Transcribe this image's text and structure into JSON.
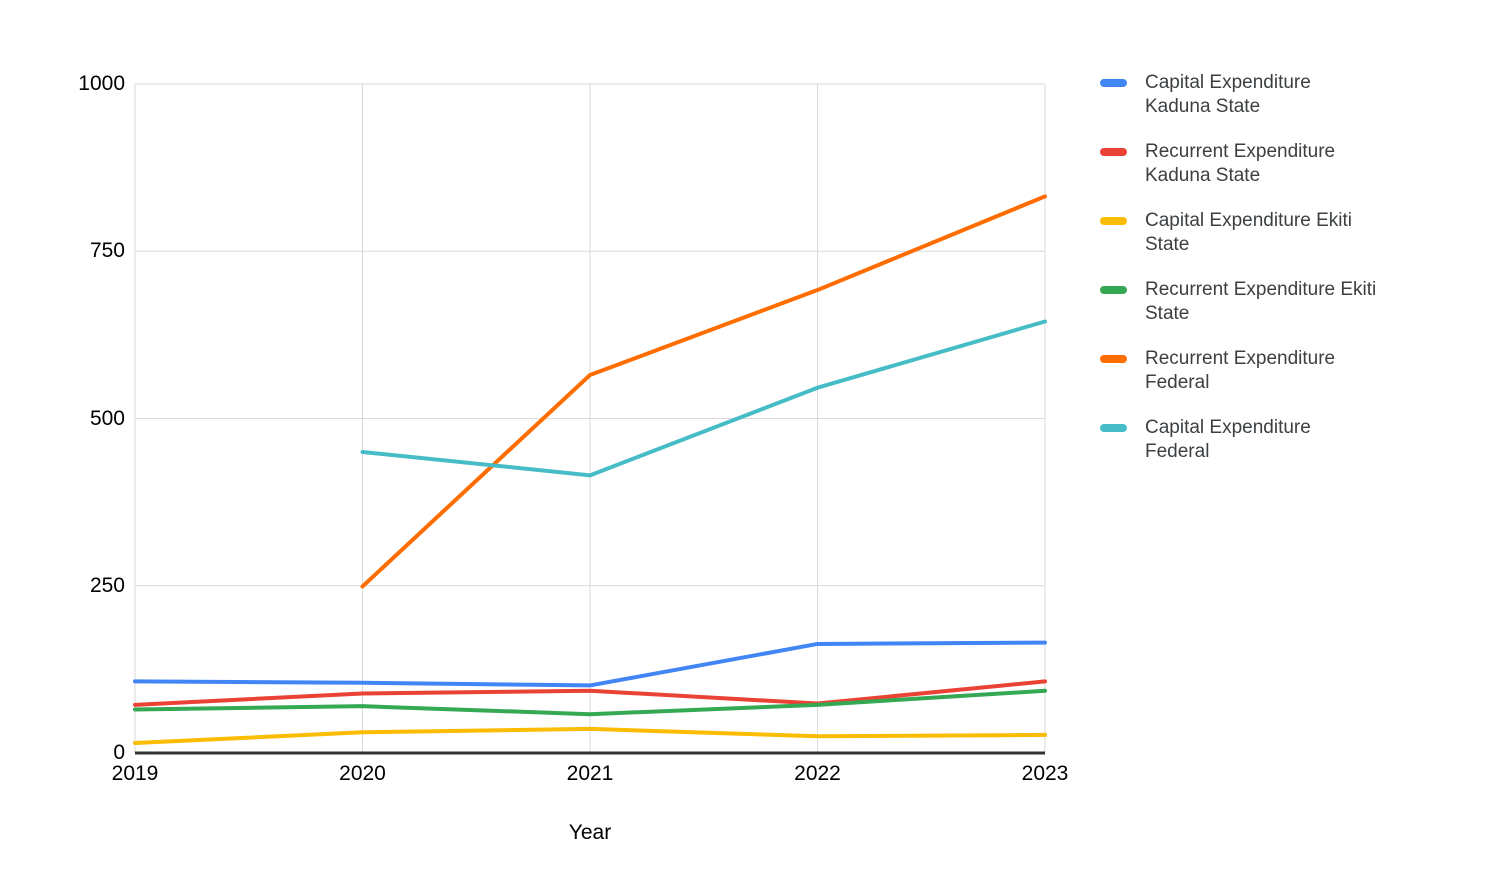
{
  "page": {
    "background": "#ffffff"
  },
  "chart_data": {
    "type": "line",
    "x": [
      "2019",
      "2020",
      "2021",
      "2022",
      "2023"
    ],
    "xlabel": "Year",
    "ylim": [
      0,
      1000
    ],
    "yticks": [
      0,
      250,
      500,
      750,
      1000
    ],
    "grid": true,
    "legend_position": "right",
    "grid_color": "#d9d9d9",
    "axis_color": "#333333",
    "tick_color": "#000000",
    "legend_text_color": "#3c4043",
    "series": [
      {
        "name": "Capital Expenditure Kaduna State",
        "label_lines": [
          "Capital Expenditure",
          "Kaduna State"
        ],
        "color": "#4285F4",
        "values": [
          107,
          105,
          101,
          163,
          165
        ]
      },
      {
        "name": "Recurrent Expenditure Kaduna State",
        "label_lines": [
          "Recurrent Expenditure",
          "Kaduna State"
        ],
        "color": "#EA4335",
        "values": [
          72,
          89,
          93,
          74,
          107
        ]
      },
      {
        "name": "Capital Expenditure Ekiti State",
        "label_lines": [
          "Capital Expenditure Ekiti",
          "State"
        ],
        "color": "#FBBC04",
        "values": [
          15,
          31,
          36,
          25,
          27
        ]
      },
      {
        "name": "Recurrent Expenditure Ekiti State",
        "label_lines": [
          "Recurrent Expenditure Ekiti",
          "State"
        ],
        "color": "#34A853",
        "values": [
          65,
          70,
          58,
          72,
          93
        ]
      },
      {
        "name": "Recurrent Expenditure Federal",
        "label_lines": [
          "Recurrent Expenditure",
          "Federal"
        ],
        "color": "#FF6D01",
        "values": [
          null,
          249,
          565,
          692,
          832
        ]
      },
      {
        "name": "Capital Expenditure Federal",
        "label_lines": [
          "Capital Expenditure",
          "Federal"
        ],
        "color": "#46BDC6",
        "values": [
          null,
          450,
          415,
          546,
          645
        ]
      }
    ]
  }
}
